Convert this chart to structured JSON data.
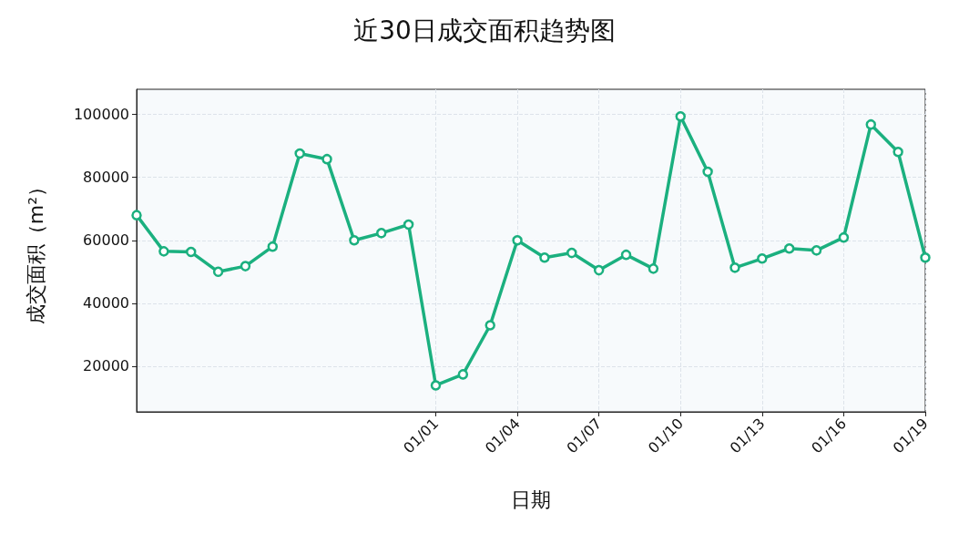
{
  "chart_data": {
    "type": "line",
    "title": "近30日成交面积趋势图",
    "xlabel": "日期",
    "ylabel": "成交面积（m²）",
    "categories": [
      null,
      null,
      null,
      null,
      null,
      null,
      null,
      null,
      null,
      null,
      null,
      "01/01",
      null,
      null,
      "01/04",
      null,
      null,
      "01/07",
      null,
      null,
      "01/10",
      null,
      null,
      "01/13",
      null,
      null,
      "01/16",
      null,
      null,
      "01/19"
    ],
    "series": [
      {
        "color": "#1bb07f",
        "values": [
          68000,
          56500,
          56300,
          50000,
          51800,
          58000,
          87600,
          85800,
          60000,
          62300,
          65000,
          13900,
          17400,
          33000,
          60000,
          54500,
          56000,
          50500,
          55400,
          51000,
          99400,
          81800,
          51300,
          54200,
          57400,
          56800,
          60900,
          96800,
          88100,
          54500
        ]
      }
    ],
    "ylim": [
      5500,
      108000
    ],
    "yticks": [
      20000,
      40000,
      60000,
      80000,
      100000
    ],
    "grid": true,
    "marker": "circle",
    "line_style": "solid"
  }
}
